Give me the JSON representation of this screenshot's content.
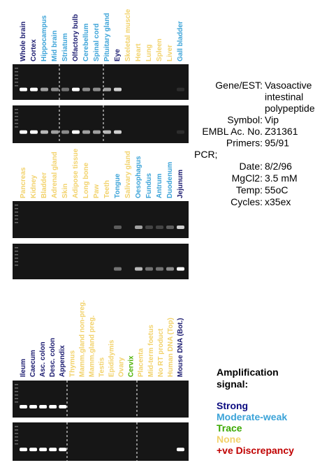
{
  "panels": [
    {
      "lanes": [
        {
          "label": "Whole brain",
          "color": "#1c1c70"
        },
        {
          "label": "Cortex",
          "color": "#1c1c70"
        },
        {
          "label": "Hippocampus",
          "color": "#3ba3d8"
        },
        {
          "label": "Mid brain",
          "color": "#3ba3d8"
        },
        {
          "label": "Striatum",
          "color": "#3ba3d8"
        },
        {
          "label": "Olfactory bulb",
          "color": "#1c1c70"
        },
        {
          "label": "Cerebellum",
          "color": "#3ba3d8"
        },
        {
          "label": "Spinal cord",
          "color": "#3ba3d8"
        },
        {
          "label": "Pituitary gland",
          "color": "#3ba3d8"
        },
        {
          "label": "Eye",
          "color": "#1c1c70"
        },
        {
          "label": "Skeletal muscle",
          "color": "#f2d26b"
        },
        {
          "label": "Heart",
          "color": "#f2d26b"
        },
        {
          "label": "Lung",
          "color": "#f2d26b"
        },
        {
          "label": "Spleen",
          "color": "#f2d26b"
        },
        {
          "label": "Liver",
          "color": "#f2d26b"
        },
        {
          "label": "Gall bladder",
          "color": "#3ba3d8"
        }
      ]
    },
    {
      "lanes": [
        {
          "label": "Pancreas",
          "color": "#f2d26b"
        },
        {
          "label": "Kidney",
          "color": "#f2d26b"
        },
        {
          "label": "Bladder",
          "color": "#f2d26b"
        },
        {
          "label": "Adrenal gland",
          "color": "#f2d26b"
        },
        {
          "label": "Skin",
          "color": "#f2d26b"
        },
        {
          "label": "Adipose tissue",
          "color": "#f2d26b"
        },
        {
          "label": "Long bone",
          "color": "#f2d26b"
        },
        {
          "label": "Paw",
          "color": "#f2d26b"
        },
        {
          "label": "Teeth",
          "color": "#f2d26b"
        },
        {
          "label": "Tongue",
          "color": "#3ba3d8"
        },
        {
          "label": "Salivary gland",
          "color": "#f2d26b"
        },
        {
          "label": "Oesophagus",
          "color": "#3ba3d8"
        },
        {
          "label": "Fundus",
          "color": "#3ba3d8"
        },
        {
          "label": "Antrum",
          "color": "#3ba3d8"
        },
        {
          "label": "Duodenum",
          "color": "#3ba3d8"
        },
        {
          "label": "Jejunum",
          "color": "#1c1c70"
        }
      ]
    },
    {
      "lanes": [
        {
          "label": "Ileum",
          "color": "#1c1c70"
        },
        {
          "label": "Caecum",
          "color": "#1c1c70"
        },
        {
          "label": "Asc. colon",
          "color": "#1c1c70"
        },
        {
          "label": "Desc. colon",
          "color": "#1c1c70"
        },
        {
          "label": "Appendix",
          "color": "#1c1c70"
        },
        {
          "label": "Thymus",
          "color": "#f2d26b"
        },
        {
          "label": "Mamm.gland non-preg.",
          "color": "#f2d26b"
        },
        {
          "label": "Mamm.gland preg.",
          "color": "#f2d26b"
        },
        {
          "label": "Testis",
          "color": "#f2d26b"
        },
        {
          "label": "Epididymis",
          "color": "#f2d26b"
        },
        {
          "label": "Ovary",
          "color": "#f2d26b"
        },
        {
          "label": "Cervix",
          "color": "#4cb000"
        },
        {
          "label": "Placenta",
          "color": "#f2d26b"
        },
        {
          "label": "Mid-term foetus",
          "color": "#f2d26b"
        },
        {
          "label": "No RT product",
          "color": "#f2d26b"
        },
        {
          "label": "Human DNA (Top)",
          "color": "#f2d26b"
        },
        {
          "label": "Mouse DNA (Bot.)",
          "color": "#1c1c70"
        }
      ]
    }
  ],
  "info": {
    "rows": [
      {
        "label": "Gene/EST:",
        "value": [
          "Vasoactive",
          "intestinal",
          "polypeptide"
        ]
      },
      {
        "label": "Symbol:",
        "value": [
          "Vip"
        ]
      },
      {
        "label": "EMBL Ac. No.",
        "value": [
          "Z31361"
        ]
      },
      {
        "label": "Primers:",
        "value": [
          "95/91"
        ]
      }
    ],
    "pcr": "PCR;",
    "pcr_rows": [
      {
        "label": "Date:",
        "value": "8/2/96"
      },
      {
        "label": "MgCl2:",
        "value": "3.5 mM"
      },
      {
        "label": "Temp:",
        "value": "55oC"
      },
      {
        "label": "Cycles:",
        "value": "x35ex"
      }
    ]
  },
  "legend": {
    "title": [
      "Amplification",
      "signal:"
    ],
    "items": [
      {
        "text": "Strong",
        "color": "#0a0a80"
      },
      {
        "text": "Moderate-weak",
        "color": "#3ba3d8"
      },
      {
        "text": "Trace",
        "color": "#3aa800"
      },
      {
        "text": "None",
        "color": "#f2d26b"
      },
      {
        "text": "+ve Discrepancy",
        "color": "#c00000"
      }
    ]
  }
}
